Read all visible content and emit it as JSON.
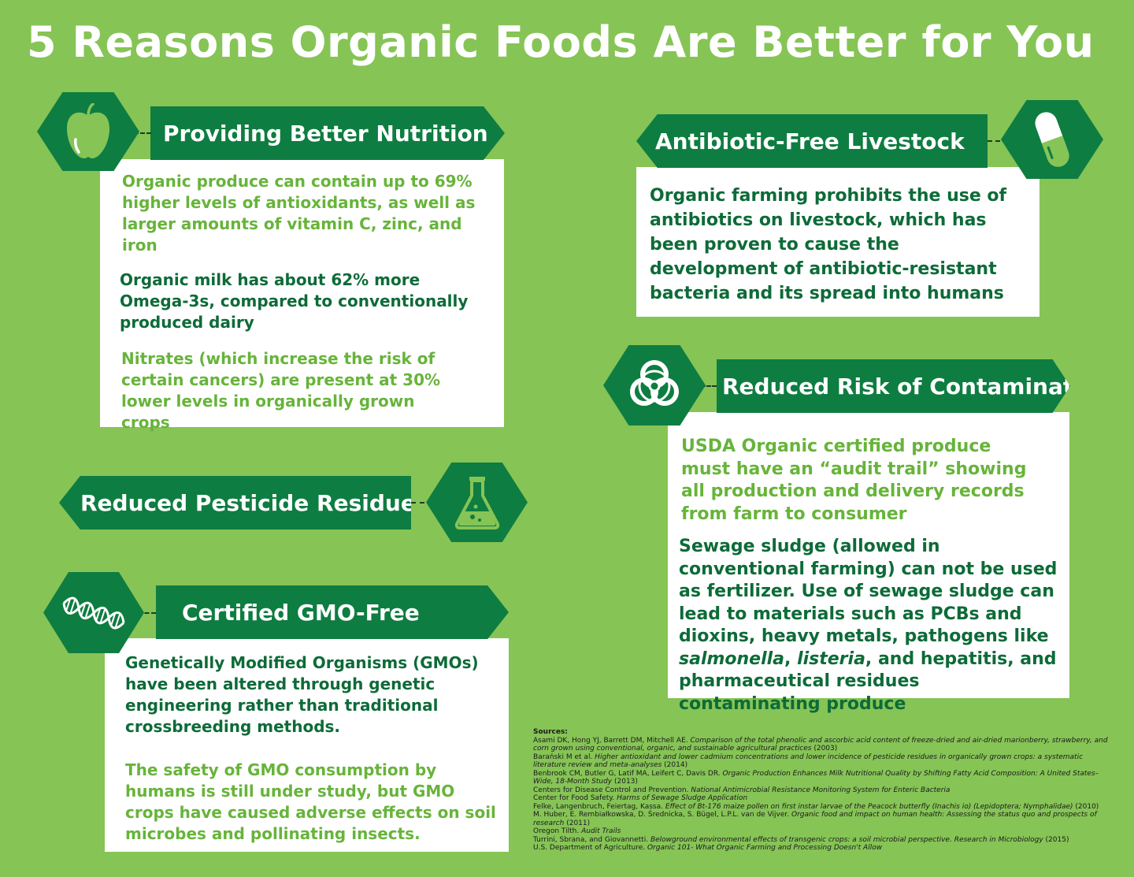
{
  "title": "5 Reasons Organic Foods Are Better for You",
  "colors": {
    "background": "#86c456",
    "banner": "#0e7d41",
    "light_text": "#67b43a",
    "dark_text": "#0d6b38"
  },
  "sections": {
    "nutrition": {
      "heading": "Providing Better Nutrition",
      "icon": "apple-icon",
      "p1": "Organic produce can contain up to 69% higher levels of antioxidants, as well as larger amounts of vitamin C, zinc, and iron",
      "p2": "Organic milk has about 62% more Omega-3s, compared to conventionally produced dairy",
      "p3": "Nitrates (which increase the risk of certain cancers) are present at 30% lower levels in organically grown crops"
    },
    "antibiotic": {
      "heading": "Antibiotic-Free Livestock",
      "icon": "pill-capsule-icon",
      "p1": "Organic farming prohibits the use of antibiotics on livestock, which has been proven to cause the development of antibiotic-resistant bacteria and its spread into humans"
    },
    "pesticide": {
      "heading": "Reduced Pesticide Residues",
      "icon": "flask-icon"
    },
    "contamination": {
      "heading": "Reduced Risk of Contamination",
      "icon": "biohazard-icon",
      "p1": "USDA Organic certified produce must have an “audit trail” showing all production and delivery records from farm to consumer",
      "p2_a": "Sewage sludge (allowed in conventional farming) can not be used as fertilizer. Use of sewage sludge can lead to materials such as PCBs and dioxins, heavy metals, pathogens like ",
      "p2_salmonella": "salmonella",
      "p2_b": ", ",
      "p2_listeria": "listeria",
      "p2_c": ", and hepatitis, and pharmaceutical residues contaminating produce"
    },
    "gmo": {
      "heading": "Certified GMO-Free",
      "icon": "dna-icon",
      "p1": "Genetically Modified Organisms (GMOs) have been altered through genetic engineering rather than traditional crossbreeding methods.",
      "p2": "The safety of GMO consumption by humans is still under study, but GMO crops have caused adverse effects on soil microbes and pollinating insects."
    }
  },
  "sources": {
    "label": "Sources:",
    "s1a": "Asami DK, Hong YJ, Barrett DM, Mitchell AE. ",
    "s1b": "Comparison of the total phenolic and ascorbic acid content of freeze-dried and air-dried marionberry, strawberry, and corn grown using conventional, organic, and sustainable agricultural practices",
    "s1c": " (2003)",
    "s2a": "Barański M et al. ",
    "s2b": "Higher antioxidant and lower cadmium concentrations and lower incidence of pesticide residues in organically grown crops: a systematic literature review and meta-analyses",
    "s2c": " (2014)",
    "s3a": "Benbrook CM, Butler G, Latif MA, Leifert C, Davis DR. ",
    "s3b": "Organic Production Enhances Milk Nutritional Quality by Shifting Fatty Acid Composition: A United States–Wide, 18-Month Study",
    "s3c": " (2013)",
    "s4a": "Centers for Disease Control and Prevention. ",
    "s4b": "National Antimicrobial Resistance Monitoring System for Enteric Bacteria",
    "s5a": "Center for Food Safety. ",
    "s5b": "Harms of Sewage Sludge Application",
    "s6a": "Felke, Langenbruch, Feiertag,  Kassa. ",
    "s6b": "Effect of Bt-176 maize pollen on first instar larvae of the Peacock butterfly (Inachis io) (Lepidoptera; Nymphalidae)",
    "s6c": " (2010)",
    "s7a": "M. Huber, E. Rembiałkowska, D. Średnicka, S. Bügel, L.P.L. van de Vijver. ",
    "s7b": "Organic food and impact on human health: Assessing the status quo and prospects of research",
    "s7c": " (2011)",
    "s8a": "Oregon Tilth. ",
    "s8b": "Audit Trails",
    "s9a": "Turrini, Sbrana, and Giovannetti. ",
    "s9b": "Belowground environmental effects of transgenic crops: a soil microbial perspective. Research in Microbiology",
    "s9c": " (2015)",
    "s10a": "U.S. Department of Agriculture. ",
    "s10b": "Organic 101- What Organic Farming and Processing Doesn't Allow"
  }
}
